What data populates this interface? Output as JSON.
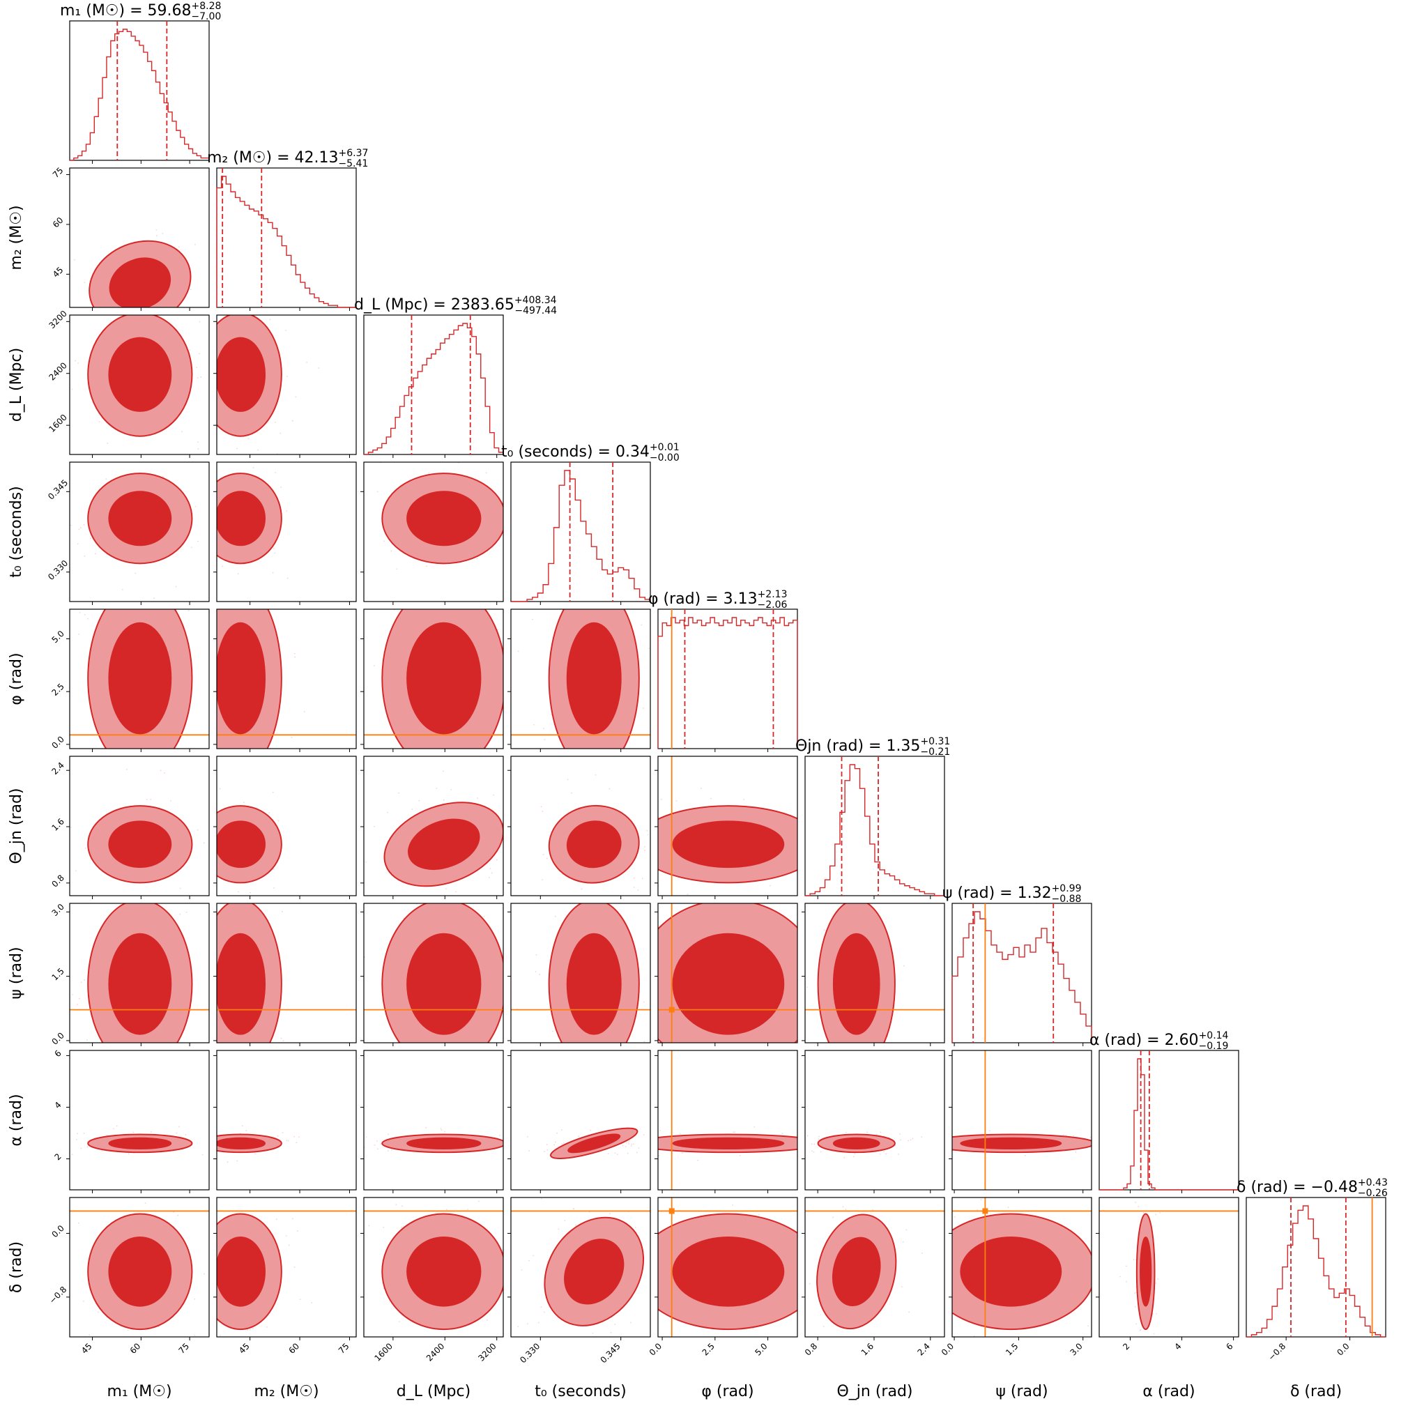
{
  "figure": {
    "type": "corner-plot",
    "colors": {
      "posterior": "#d62728",
      "posterior_mid": "#ec9a9b",
      "posterior_light": "#f7d4d4",
      "quantile_line": "#d62728",
      "truth_line": "#ff7f0e",
      "frame": "#000000"
    }
  },
  "chart_data": {
    "type": "corner",
    "grid": false,
    "parameters": [
      {
        "label": "m₁ (M☉)",
        "title": "m₁ (M☉) = 59.68 +8.28 −7.00",
        "title_main": "m₁ (M☉) = 59.68",
        "title_plus": "+8.28",
        "title_minus": "−7.00",
        "median": 59.68,
        "lower": 52.68,
        "upper": 67.96,
        "range": [
          38,
          81
        ],
        "ticks": [
          45,
          60,
          75
        ],
        "tick_labels": [
          "45",
          "60",
          "75"
        ],
        "truth": null,
        "hist": [
          0,
          1,
          2,
          4,
          7,
          12,
          19,
          27,
          36,
          45,
          52,
          55,
          56,
          57,
          56,
          54,
          52,
          50,
          47,
          43,
          39,
          34,
          29,
          25,
          21,
          17,
          13,
          10,
          7,
          5,
          3,
          2,
          1,
          1
        ]
      },
      {
        "label": "m₂ (M☉)",
        "title": "m₂ (M☉) = 42.13 +6.37 −5.41",
        "title_main": "m₂ (M☉) = 42.13",
        "title_plus": "+6.37",
        "title_minus": "−5.41",
        "median": 42.13,
        "lower": 36.72,
        "upper": 48.5,
        "range": [
          35,
          77
        ],
        "ticks": [
          45,
          60,
          75
        ],
        "tick_labels": [
          "45",
          "60",
          "75"
        ],
        "truth": null,
        "hist": [
          62,
          68,
          64,
          60,
          57,
          55,
          53,
          51,
          50,
          48,
          46,
          44,
          41,
          37,
          32,
          27,
          22,
          17,
          13,
          10,
          7,
          5,
          3,
          2,
          1,
          1,
          0,
          0,
          0,
          0
        ]
      },
      {
        "label": "d_L (Mpc)",
        "title": "d_L (Mpc) = 2383.65 +408.34 −497.44",
        "title_main": "d_L (Mpc) = 2383.65",
        "title_plus": "+408.34",
        "title_minus": "−497.44",
        "median": 2383.65,
        "lower": 1886.21,
        "upper": 2791.99,
        "range": [
          1150,
          3300
        ],
        "ticks": [
          1600,
          2400,
          3200
        ],
        "tick_labels": [
          "1600",
          "2400",
          "3200"
        ],
        "truth": null,
        "hist": [
          0,
          1,
          2,
          3,
          5,
          8,
          12,
          17,
          22,
          27,
          31,
          35,
          38,
          41,
          44,
          46,
          48,
          51,
          53,
          55,
          57,
          59,
          60,
          58,
          54,
          46,
          35,
          22,
          10,
          3,
          1
        ]
      },
      {
        "label": "t₀ (seconds)",
        "title": "t₀ (seconds) = 0.34 +0.01 −0.00",
        "title_main": "t₀ (seconds) = 0.34",
        "title_plus": "+0.01",
        "title_minus": "−0.00",
        "median": 0.34,
        "lower": 0.3355,
        "upper": 0.3435,
        "range": [
          0.3245,
          0.3505
        ],
        "ticks": [
          0.33,
          0.345
        ],
        "tick_labels": [
          "0.330",
          "0.345"
        ],
        "truth": null,
        "hist": [
          0,
          0,
          0,
          1,
          2,
          4,
          8,
          18,
          35,
          55,
          62,
          58,
          48,
          38,
          32,
          26,
          20,
          15,
          13,
          14,
          16,
          15,
          11,
          6,
          2,
          1
        ]
      },
      {
        "label": "φ (rad)",
        "title": "φ (rad) = 3.13 +2.13 −2.06",
        "title_main": "φ (rad) = 3.13",
        "title_plus": "+2.13",
        "title_minus": "−2.06",
        "median": 3.13,
        "lower": 1.07,
        "upper": 5.26,
        "range": [
          -0.2,
          6.4
        ],
        "ticks": [
          0,
          2.5,
          5
        ],
        "tick_labels": [
          "0.0",
          "2.5",
          "5.0"
        ],
        "truth": 0.45,
        "hist": [
          42,
          47,
          46,
          49,
          47,
          48,
          46,
          49,
          47,
          48,
          46,
          47,
          49,
          47,
          46,
          48,
          47,
          49,
          46,
          48,
          47,
          46,
          48,
          49,
          47,
          46,
          48,
          47,
          49,
          46,
          47,
          48
        ]
      },
      {
        "label": "Θ_jn (rad)",
        "title": "Θ_jn (rad) = 1.35 +0.31 −0.21",
        "title_main": "Θjn (rad) = 1.35",
        "title_plus": "+0.31",
        "title_minus": "−0.21",
        "median": 1.35,
        "lower": 1.14,
        "upper": 1.66,
        "range": [
          0.62,
          2.6
        ],
        "ticks": [
          0.8,
          1.6,
          2.4
        ],
        "tick_labels": [
          "0.8",
          "1.6",
          "2.4"
        ],
        "truth": null,
        "hist": [
          0,
          1,
          2,
          4,
          8,
          15,
          26,
          42,
          58,
          66,
          64,
          54,
          40,
          26,
          17,
          13,
          11,
          10,
          8,
          6,
          5,
          4,
          3,
          2,
          1,
          1,
          0,
          0
        ]
      },
      {
        "label": "ψ (rad)",
        "title": "ψ (rad) = 1.32 +0.99 −0.88",
        "title_main": "ψ (rad) = 1.32",
        "title_plus": "+0.99",
        "title_minus": "−0.88",
        "median": 1.32,
        "lower": 0.44,
        "upper": 2.31,
        "range": [
          -0.05,
          3.2
        ],
        "ticks": [
          0,
          1.5,
          3
        ],
        "tick_labels": [
          "0.0",
          "1.5",
          "3.0"
        ],
        "truth": 0.72,
        "hist": [
          28,
          36,
          44,
          50,
          55,
          52,
          47,
          41,
          38,
          35,
          37,
          40,
          36,
          41,
          38,
          44,
          48,
          42,
          38,
          33,
          27,
          22,
          17,
          12,
          7
        ]
      },
      {
        "label": "α (rad)",
        "title": "α (rad) = 2.60 +0.14 −0.19",
        "title_main": "α (rad) = 2.60",
        "title_plus": "+0.14",
        "title_minus": "−0.19",
        "median": 2.6,
        "lower": 2.41,
        "upper": 2.74,
        "range": [
          0.8,
          6.2
        ],
        "ticks": [
          2,
          4,
          6
        ],
        "tick_labels": [
          "2",
          "4",
          "6"
        ],
        "truth": null,
        "hist": [
          0,
          0,
          0,
          0,
          0,
          0,
          0,
          1,
          3,
          12,
          40,
          66,
          58,
          20,
          3,
          1,
          0,
          0,
          0,
          0,
          0,
          0,
          0,
          0,
          0,
          0,
          0,
          0,
          0,
          0,
          0,
          0,
          0,
          0,
          0,
          0,
          0,
          0,
          0,
          0
        ]
      },
      {
        "label": "δ (rad)",
        "title": "δ (rad) = −0.48 +0.43 −0.26",
        "title_main": "δ (rad) = −0.48",
        "title_plus": "+0.43",
        "title_minus": "−0.26",
        "median": -0.48,
        "lower": -0.74,
        "upper": -0.05,
        "range": [
          -1.3,
          0.45
        ],
        "ticks": [
          -0.8,
          0.0
        ],
        "tick_labels": [
          "−0.8",
          "0.0"
        ],
        "truth": 0.28,
        "hist": [
          0,
          1,
          2,
          4,
          8,
          14,
          22,
          32,
          42,
          52,
          58,
          60,
          54,
          45,
          36,
          28,
          22,
          18,
          20,
          22,
          19,
          14,
          9,
          5,
          2,
          1,
          0
        ]
      }
    ]
  }
}
